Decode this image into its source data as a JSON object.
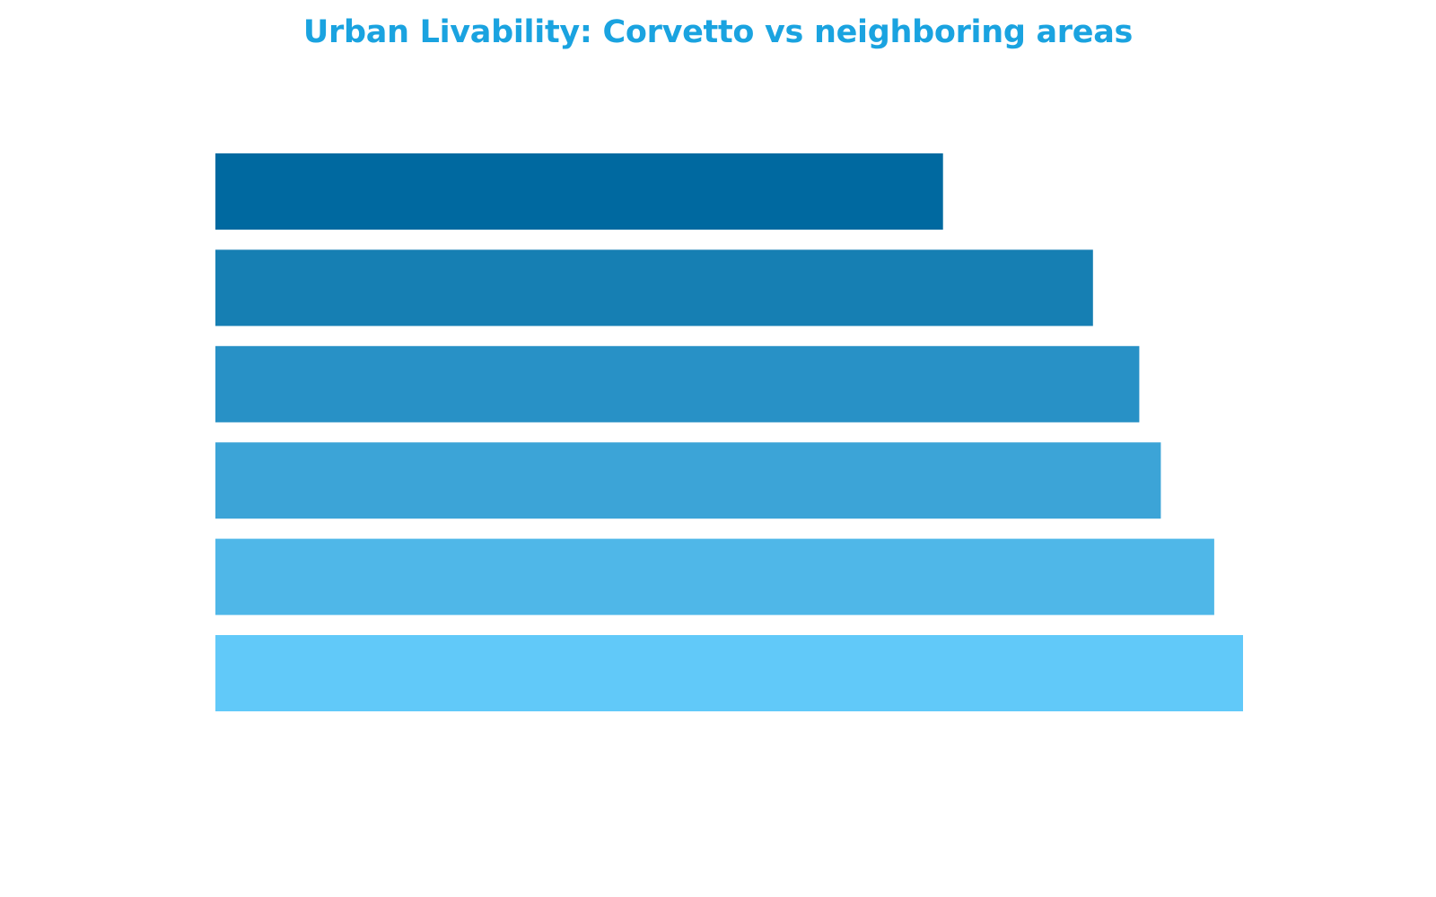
{
  "chart_data": {
    "type": "bar",
    "orientation": "horizontal",
    "title": "Urban Livability: Corvetto vs neighboring areas",
    "xlabel": "",
    "ylabel": "",
    "categories": [
      "",
      "",
      "",
      "",
      "",
      ""
    ],
    "values": [
      70.8,
      85.4,
      89.9,
      92.0,
      97.2,
      100.0
    ],
    "xlim": [
      0,
      100
    ],
    "grid": false,
    "legend": "none",
    "colors": [
      "#0069a0",
      "#167fb3",
      "#2891c6",
      "#3ca4d7",
      "#4fb7e8",
      "#61c9f9"
    ]
  }
}
